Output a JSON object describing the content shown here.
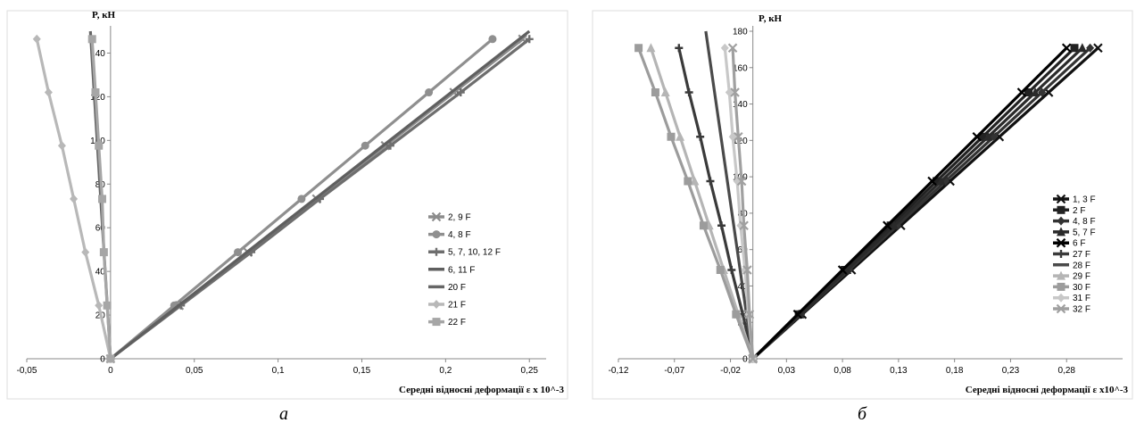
{
  "chart_data": [
    {
      "type": "line",
      "caption": "а",
      "ylabel": "P, кН",
      "xlabel": "Середні відносні деформації  ε x 10^-3",
      "xlim": [
        -0.05,
        0.26
      ],
      "ylim": [
        0,
        150
      ],
      "xticks": [
        {
          "v": -0.05,
          "t": "-0,05"
        },
        {
          "v": 0,
          "t": "0"
        },
        {
          "v": 0.05,
          "t": "0,05"
        },
        {
          "v": 0.1,
          "t": "0,1"
        },
        {
          "v": 0.15,
          "t": "0,15"
        },
        {
          "v": 0.2,
          "t": "0,2"
        },
        {
          "v": 0.25,
          "t": "0,25"
        }
      ],
      "yticks": [
        {
          "v": 0,
          "t": "0"
        },
        {
          "v": 20,
          "t": "20"
        },
        {
          "v": 40,
          "t": "40"
        },
        {
          "v": 60,
          "t": "60"
        },
        {
          "v": 80,
          "t": "80"
        },
        {
          "v": 100,
          "t": "100"
        },
        {
          "v": 120,
          "t": "120"
        },
        {
          "v": 140,
          "t": "140"
        }
      ],
      "grid": false,
      "legend_position": "right",
      "series": [
        {
          "name": "2, 9 F",
          "color": "#8c8c8c",
          "marker": "x",
          "x": [
            0,
            0.041,
            0.082,
            0.123,
            0.164,
            0.205,
            0.246
          ],
          "y": [
            0,
            24.4,
            48.8,
            73.2,
            97.6,
            122,
            146.4
          ]
        },
        {
          "name": "4, 8 F",
          "color": "#8f8f8f",
          "marker": "circle",
          "x": [
            0,
            0.038,
            0.076,
            0.114,
            0.152,
            0.19,
            0.228
          ],
          "y": [
            0,
            24.4,
            48.8,
            73.2,
            97.6,
            122,
            146.4
          ]
        },
        {
          "name": "5, 7, 10, 12 F",
          "color": "#6e6e6e",
          "marker": "plus",
          "x": [
            0,
            0.042,
            0.084,
            0.125,
            0.167,
            0.209,
            0.25
          ],
          "y": [
            0,
            24.4,
            48.8,
            73.2,
            97.6,
            122,
            146.4
          ]
        },
        {
          "name": "6, 11 F",
          "color": "#5f5f5f",
          "marker": "none",
          "x": [
            0,
            0.25
          ],
          "y": [
            0,
            150
          ]
        },
        {
          "name": "20 F",
          "color": "#666666",
          "marker": "none",
          "x": [
            0,
            -0.012
          ],
          "y": [
            0,
            150
          ]
        },
        {
          "name": "21 F",
          "color": "#b8b8b8",
          "marker": "diamond",
          "x": [
            0,
            -0.007,
            -0.015,
            -0.022,
            -0.029,
            -0.037,
            -0.044
          ],
          "y": [
            0,
            24.4,
            48.8,
            73.2,
            97.6,
            122,
            146.4
          ]
        },
        {
          "name": "22 F",
          "color": "#a6a6a6",
          "marker": "square",
          "x": [
            0,
            -0.002,
            -0.004,
            -0.005,
            -0.007,
            -0.009,
            -0.011
          ],
          "y": [
            0,
            24.4,
            48.8,
            73.2,
            97.6,
            122,
            146.4
          ]
        }
      ]
    },
    {
      "type": "line",
      "caption": "б",
      "ylabel": "P, кН",
      "xlabel": "Середні відносні деформації  ε x10^-3",
      "xlim": [
        -0.12,
        0.33
      ],
      "ylim": [
        0,
        180
      ],
      "xticks": [
        {
          "v": -0.12,
          "t": "-0,12"
        },
        {
          "v": -0.07,
          "t": "-0,07"
        },
        {
          "v": -0.02,
          "t": "-0,02"
        },
        {
          "v": 0.03,
          "t": "0,03"
        },
        {
          "v": 0.08,
          "t": "0,08"
        },
        {
          "v": 0.13,
          "t": "0,13"
        },
        {
          "v": 0.18,
          "t": "0,18"
        },
        {
          "v": 0.23,
          "t": "0,23"
        },
        {
          "v": 0.28,
          "t": "0,28"
        }
      ],
      "yticks": [
        {
          "v": 0,
          "t": "0"
        },
        {
          "v": 20,
          "t": "20"
        },
        {
          "v": 40,
          "t": "40"
        },
        {
          "v": 60,
          "t": "60"
        },
        {
          "v": 80,
          "t": "80"
        },
        {
          "v": 100,
          "t": "100"
        },
        {
          "v": 120,
          "t": "120"
        },
        {
          "v": 140,
          "t": "140"
        },
        {
          "v": 160,
          "t": "160"
        },
        {
          "v": 180,
          "t": "180"
        }
      ],
      "grid": false,
      "legend_position": "right",
      "series": [
        {
          "name": "1, 3 F",
          "color": "#111111",
          "marker": "x",
          "x": [
            0,
            0.044,
            0.088,
            0.132,
            0.176,
            0.22,
            0.264,
            0.308
          ],
          "y": [
            0,
            24.4,
            48.8,
            73.2,
            97.6,
            122,
            146.4,
            170.8
          ]
        },
        {
          "name": "2 F",
          "color": "#222222",
          "marker": "square",
          "x": [
            0,
            0.041,
            0.082,
            0.123,
            0.164,
            0.205,
            0.246,
            0.287
          ],
          "y": [
            0,
            24.4,
            48.8,
            73.2,
            97.6,
            122,
            146.4,
            170.8
          ]
        },
        {
          "name": "4, 8 F",
          "color": "#333333",
          "marker": "diamond",
          "x": [
            0,
            0.043,
            0.086,
            0.129,
            0.172,
            0.215,
            0.258,
            0.301
          ],
          "y": [
            0,
            24.4,
            48.8,
            73.2,
            97.6,
            122,
            146.4,
            170.8
          ]
        },
        {
          "name": "5, 7 F",
          "color": "#2a2a2a",
          "marker": "triangle",
          "x": [
            0,
            0.042,
            0.084,
            0.126,
            0.168,
            0.21,
            0.252,
            0.294
          ],
          "y": [
            0,
            24.4,
            48.8,
            73.2,
            97.6,
            122,
            146.4,
            170.8
          ]
        },
        {
          "name": "6 F",
          "color": "#000000",
          "marker": "x",
          "x": [
            0,
            0.04,
            0.08,
            0.12,
            0.16,
            0.2,
            0.24,
            0.28
          ],
          "y": [
            0,
            24.4,
            48.8,
            73.2,
            97.6,
            122,
            146.4,
            170.8
          ]
        },
        {
          "name": "27 F",
          "color": "#3a3a3a",
          "marker": "plus",
          "x": [
            0,
            -0.009,
            -0.019,
            -0.028,
            -0.038,
            -0.047,
            -0.057,
            -0.066
          ],
          "y": [
            0,
            24.4,
            48.8,
            73.2,
            97.6,
            122,
            146.4,
            170.8
          ]
        },
        {
          "name": "28 F",
          "color": "#4a4a4a",
          "marker": "none",
          "x": [
            0,
            -0.042
          ],
          "y": [
            0,
            180
          ]
        },
        {
          "name": "29 F",
          "color": "#b5b5b5",
          "marker": "triangle",
          "x": [
            0,
            -0.013,
            -0.026,
            -0.039,
            -0.052,
            -0.065,
            -0.078,
            -0.091
          ],
          "y": [
            0,
            24.4,
            48.8,
            73.2,
            97.6,
            122,
            146.4,
            170.8
          ]
        },
        {
          "name": "30 F",
          "color": "#9c9c9c",
          "marker": "square",
          "x": [
            0,
            -0.015,
            -0.029,
            -0.044,
            -0.058,
            -0.073,
            -0.087,
            -0.102
          ],
          "y": [
            0,
            24.4,
            48.8,
            73.2,
            97.6,
            122,
            146.4,
            170.8
          ]
        },
        {
          "name": "31 F",
          "color": "#c8c8c8",
          "marker": "diamond",
          "x": [
            0,
            -0.004,
            -0.007,
            -0.011,
            -0.014,
            -0.018,
            -0.021,
            -0.025
          ],
          "y": [
            0,
            24.4,
            48.8,
            73.2,
            97.6,
            122,
            146.4,
            170.8
          ]
        },
        {
          "name": "32 F",
          "color": "#a0a0a0",
          "marker": "x",
          "x": [
            0,
            -0.003,
            -0.005,
            -0.008,
            -0.01,
            -0.013,
            -0.016,
            -0.018
          ],
          "y": [
            0,
            24.4,
            48.8,
            73.2,
            97.6,
            122,
            146.4,
            170.8
          ]
        }
      ]
    }
  ]
}
